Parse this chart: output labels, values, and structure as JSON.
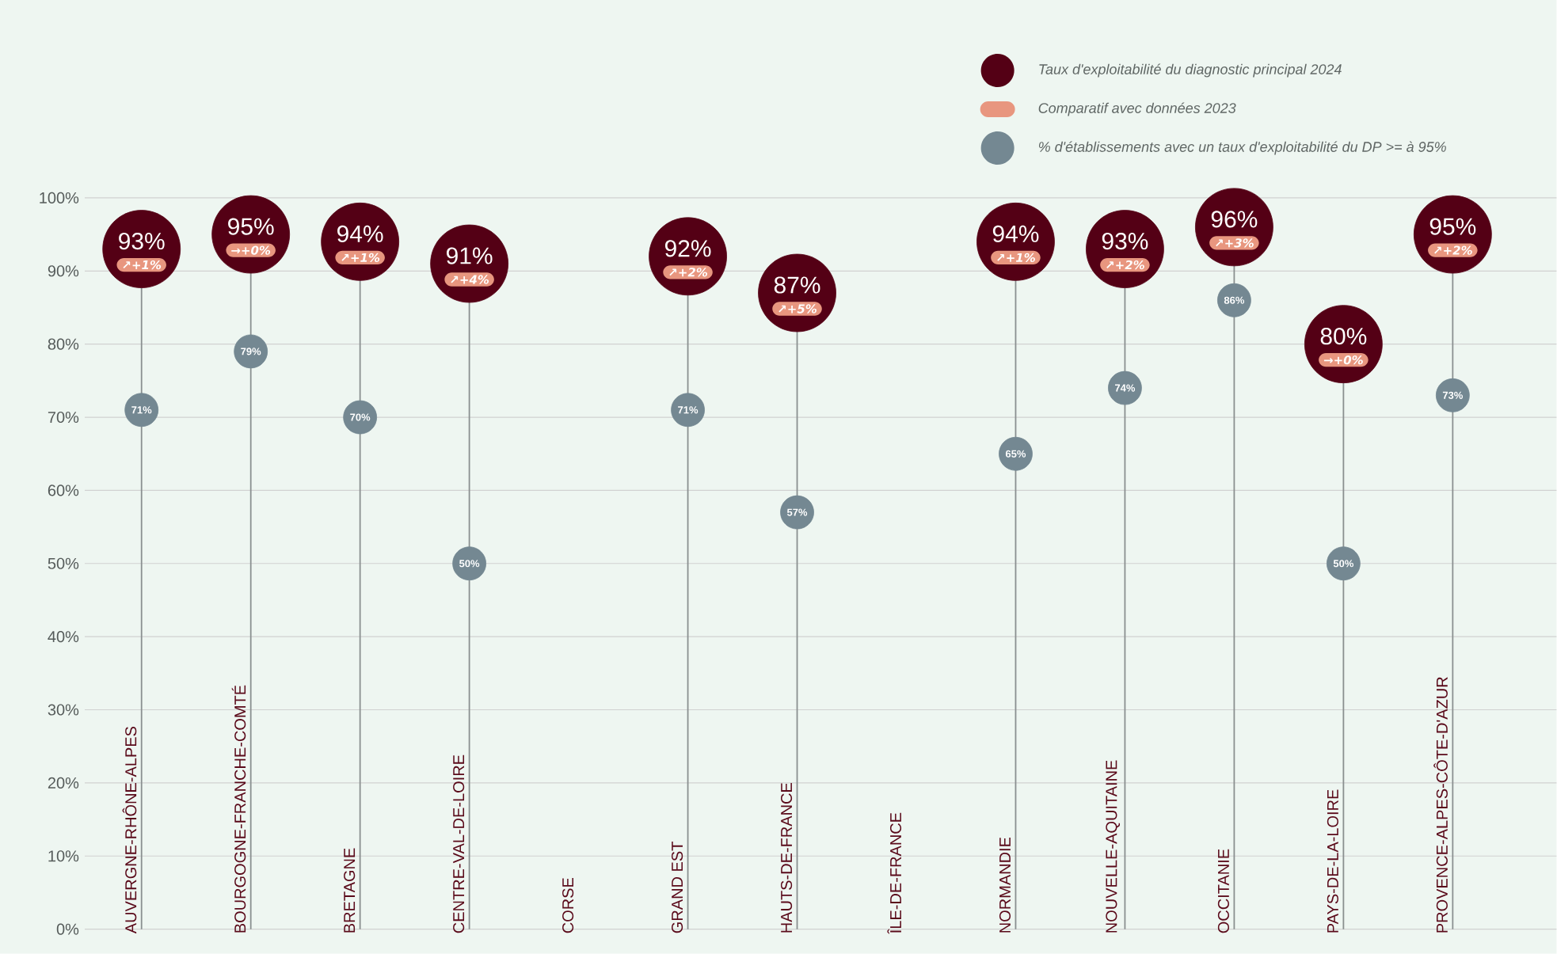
{
  "chart_data": {
    "type": "lollipop",
    "categories": [
      "AUVERGNE-RHÔNE-ALPES",
      "BOURGOGNE-FRANCHE-COMTÉ",
      "BRETAGNE",
      "CENTRE-VAL-DE-LOIRE",
      "CORSE",
      "GRAND EST",
      "HAUTS-DE-FRANCE",
      "ÎLE-DE-FRANCE",
      "NORMANDIE",
      "NOUVELLE-AQUITAINE",
      "OCCITANIE",
      "PAYS-DE-LA-LOIRE",
      "PROVENCE-ALPES-CÔTE-D'AZUR"
    ],
    "series": [
      {
        "name": "Taux d'exploitabilité du diagnostic principal 2024",
        "color": "#540015",
        "values": [
          93,
          95,
          94,
          91,
          null,
          92,
          87,
          null,
          94,
          93,
          96,
          80,
          95
        ],
        "value_labels": [
          "93%",
          "95%",
          "94%",
          "91%",
          null,
          "92%",
          "87%",
          null,
          "94%",
          "93%",
          "96%",
          "80%",
          "95%"
        ]
      },
      {
        "name": "% d'établissements avec un taux d'exploitabilité du DP >= à 95%",
        "type": "scatter",
        "color": "#748892",
        "values": [
          71,
          79,
          70,
          50,
          null,
          71,
          57,
          null,
          65,
          74,
          86,
          50,
          73
        ],
        "value_labels": [
          "71%",
          "79%",
          "70%",
          "50%",
          null,
          "71%",
          "57%",
          null,
          "65%",
          "74%",
          "86%",
          "50%",
          "73%"
        ]
      }
    ],
    "ylim": [
      0,
      100
    ],
    "yticks": [
      {
        "value": 0,
        "label": "0%"
      },
      {
        "value": 10,
        "label": "10%"
      },
      {
        "value": 20,
        "label": "20%"
      },
      {
        "value": 30,
        "label": "30%"
      },
      {
        "value": 40,
        "label": "40%"
      },
      {
        "value": 50,
        "label": "50%"
      },
      {
        "value": 60,
        "label": "60%"
      },
      {
        "value": 70,
        "label": "70%"
      },
      {
        "value": 80,
        "label": "80%"
      },
      {
        "value": 90,
        "label": "90%"
      },
      {
        "value": 100,
        "label": "100%"
      }
    ],
    "grid": "y",
    "legend": "top right",
    "annotations": [
      "Comparatif avec données 2023",
      "↗+1%",
      "→+0%",
      "↗+1%",
      "↗+4%",
      "↗+2%",
      "↗+5%",
      "↗+1%",
      "↗+2%",
      "↗+3%",
      "→+0%",
      "↗+2%"
    ]
  }
}
